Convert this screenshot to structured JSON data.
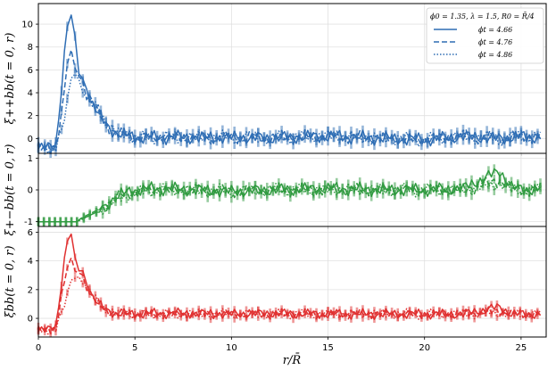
{
  "chart_data": {
    "type": "line",
    "xlabel": "r/R̄",
    "xlim": [
      0,
      26.3
    ],
    "xticks": [
      0,
      5,
      10,
      15,
      20,
      25
    ],
    "legend": {
      "placement": "top-right",
      "title": "ϕ0 = 1.35, λ = 1.5, R0 = R̄/4",
      "entries": [
        "ϕt = 4.66",
        "ϕt = 4.76",
        "ϕt = 4.86"
      ]
    },
    "panels": [
      {
        "ylabel": "ξ++bb(t = 0, r)",
        "color": "#2e6db4",
        "ylim": [
          -1.3,
          11.8
        ],
        "yticks": [
          0,
          2,
          4,
          6,
          8,
          10
        ],
        "series": [
          {
            "style": "solid",
            "x": [
              0,
              0.5,
              0.9,
              1.2,
              1.5,
              1.7,
              1.9,
              2.1,
              2.3,
              2.5,
              2.8,
              3.1,
              3.5,
              4.0,
              5,
              6,
              8,
              10,
              12,
              15,
              18,
              20,
              22,
              24,
              25,
              26
            ],
            "y": [
              -0.9,
              -0.8,
              -0.5,
              4.5,
              10.0,
              10.5,
              8.5,
              6.0,
              5.0,
              4.5,
              3.0,
              2.2,
              1.2,
              0.5,
              0.1,
              0.1,
              0.1,
              0.1,
              0.05,
              0.2,
              0.0,
              -0.1,
              0.2,
              0.0,
              0.2,
              0.1
            ]
          },
          {
            "style": "dashed",
            "x": [
              0,
              0.5,
              0.9,
              1.2,
              1.5,
              1.7,
              1.9,
              2.1,
              2.3,
              2.5,
              2.8,
              3.1,
              3.5,
              4.0,
              5,
              6,
              8,
              10,
              12,
              15,
              18,
              20,
              22,
              24,
              25,
              26
            ],
            "y": [
              -0.9,
              -0.8,
              -0.6,
              2.0,
              6.5,
              7.2,
              6.5,
              5.5,
              5.0,
              4.0,
              3.2,
              2.3,
              1.3,
              0.5,
              0.1,
              0.1,
              0.1,
              0.1,
              0.05,
              0.2,
              0.0,
              -0.1,
              0.2,
              0.0,
              0.2,
              0.1
            ]
          },
          {
            "style": "dotted",
            "x": [
              0,
              0.5,
              0.9,
              1.2,
              1.5,
              1.7,
              1.9,
              2.1,
              2.3,
              2.5,
              2.8,
              3.1,
              3.5,
              4.0,
              5,
              6,
              8,
              10,
              12,
              15,
              18,
              20,
              22,
              24,
              25,
              26
            ],
            "y": [
              -0.9,
              -0.8,
              -0.7,
              0.5,
              3.0,
              5.5,
              6.0,
              5.0,
              4.5,
              3.5,
              3.0,
              2.4,
              1.4,
              0.6,
              0.1,
              0.1,
              0.1,
              0.1,
              0.05,
              0.2,
              0.0,
              -0.1,
              0.2,
              0.0,
              0.2,
              0.1
            ]
          }
        ]
      },
      {
        "ylabel": "ξ+−bb(t = 0, r)",
        "color": "#2f9a3f",
        "ylim": [
          -1.15,
          1.15
        ],
        "yticks": [
          -1,
          0,
          1
        ],
        "series": [
          {
            "style": "solid",
            "x": [
              0,
              1,
              2.0,
              2.2,
              2.5,
              3.0,
              3.5,
              4.0,
              5,
              6,
              8,
              10,
              12,
              15,
              18,
              20,
              22,
              23.9,
              24.5,
              25,
              26
            ],
            "y": [
              -1.0,
              -1.0,
              -1.0,
              -0.9,
              -0.85,
              -0.7,
              -0.5,
              -0.2,
              0.0,
              0.05,
              0.0,
              -0.05,
              0.0,
              0.05,
              0.0,
              0.0,
              0.05,
              0.6,
              0.1,
              0.0,
              0.05
            ]
          },
          {
            "style": "dashed",
            "x": [
              0,
              1,
              2.0,
              2.2,
              2.5,
              3.0,
              3.5,
              4.0,
              5,
              6,
              8,
              10,
              12,
              15,
              18,
              20,
              22,
              23.9,
              24.5,
              25,
              26
            ],
            "y": [
              -1.0,
              -1.0,
              -1.0,
              -0.9,
              -0.8,
              -0.65,
              -0.5,
              -0.25,
              -0.05,
              0.0,
              0.0,
              -0.05,
              0.0,
              0.0,
              0.0,
              0.0,
              0.0,
              0.3,
              0.05,
              0.0,
              0.0
            ]
          },
          {
            "style": "dotted",
            "x": [
              0,
              1,
              2.0,
              2.2,
              2.5,
              3.0,
              3.5,
              4.0,
              5,
              6,
              8,
              10,
              12,
              15,
              18,
              20,
              22,
              23.9,
              24.5,
              25,
              26
            ],
            "y": [
              -1.0,
              -1.0,
              -1.0,
              -0.95,
              -0.85,
              -0.7,
              -0.55,
              -0.3,
              -0.1,
              0.0,
              0.0,
              -0.05,
              0.0,
              0.0,
              0.0,
              0.0,
              0.0,
              0.2,
              0.0,
              0.0,
              0.0
            ]
          }
        ]
      },
      {
        "ylabel": "ξbb(t = 0, r)",
        "color": "#e03030",
        "ylim": [
          -1.3,
          6.4
        ],
        "yticks": [
          0,
          2,
          4,
          6
        ],
        "series": [
          {
            "style": "solid",
            "x": [
              0,
              0.5,
              0.9,
              1.2,
              1.5,
              1.7,
              1.9,
              2.1,
              2.3,
              2.5,
              2.8,
              3.1,
              3.5,
              4.0,
              5,
              6,
              8,
              10,
              12,
              15,
              18,
              20,
              22,
              23.9,
              24.5,
              26
            ],
            "y": [
              -0.9,
              -0.8,
              -0.5,
              2.5,
              5.5,
              5.7,
              4.0,
              3.5,
              3.2,
              2.5,
              1.5,
              1.0,
              0.6,
              0.35,
              0.3,
              0.35,
              0.35,
              0.3,
              0.35,
              0.3,
              0.3,
              0.3,
              0.3,
              0.8,
              0.3,
              0.3
            ]
          },
          {
            "style": "dashed",
            "x": [
              0,
              0.5,
              0.9,
              1.2,
              1.5,
              1.7,
              1.9,
              2.1,
              2.3,
              2.5,
              2.8,
              3.1,
              3.5,
              4.0,
              5,
              6,
              8,
              10,
              12,
              15,
              18,
              20,
              22,
              23.9,
              24.5,
              26
            ],
            "y": [
              -0.9,
              -0.8,
              -0.6,
              1.5,
              3.5,
              3.9,
              3.5,
              3.2,
              3.0,
              2.3,
              1.5,
              1.0,
              0.6,
              0.35,
              0.3,
              0.3,
              0.3,
              0.3,
              0.3,
              0.3,
              0.3,
              0.3,
              0.3,
              0.5,
              0.3,
              0.3
            ]
          },
          {
            "style": "dotted",
            "x": [
              0,
              0.5,
              0.9,
              1.2,
              1.5,
              1.7,
              1.9,
              2.1,
              2.3,
              2.5,
              2.8,
              3.1,
              3.5,
              4.0,
              5,
              6,
              8,
              10,
              12,
              15,
              18,
              20,
              22,
              23.9,
              24.5,
              26
            ],
            "y": [
              -0.9,
              -0.8,
              -0.7,
              0.3,
              1.5,
              2.8,
              3.0,
              2.8,
              2.7,
              2.2,
              1.6,
              1.1,
              0.6,
              0.35,
              0.3,
              0.3,
              0.3,
              0.3,
              0.3,
              0.3,
              0.3,
              0.3,
              0.3,
              0.4,
              0.3,
              0.3
            ]
          }
        ]
      }
    ]
  }
}
